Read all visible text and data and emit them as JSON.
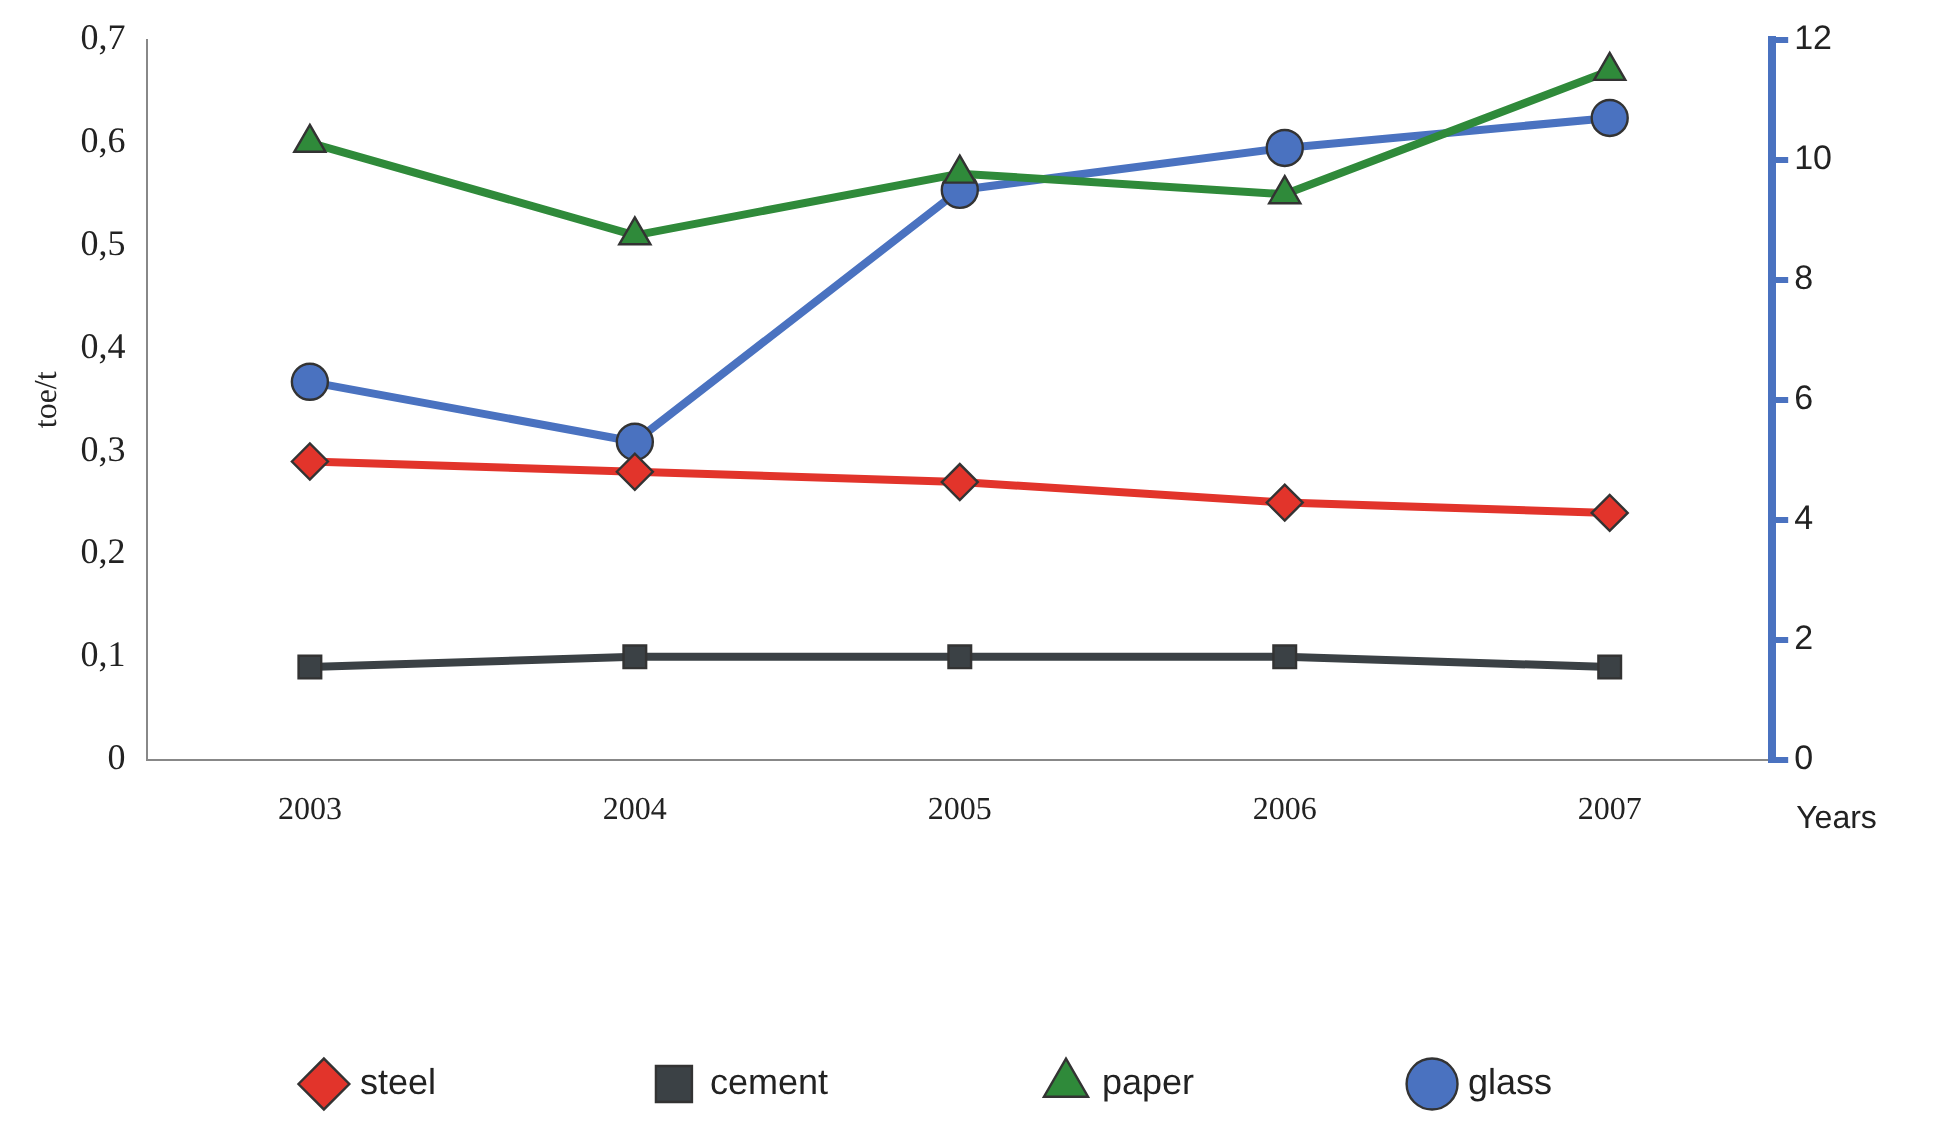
{
  "chart_data": {
    "type": "line",
    "ylabel": "toe/t",
    "xlabel": "Years",
    "categories": [
      "2003",
      "2004",
      "2005",
      "2006",
      "2007"
    ],
    "series": [
      {
        "name": "steel",
        "color": "#e2342b",
        "marker": "diamond",
        "values": [
          0.29,
          0.28,
          0.27,
          0.25,
          0.24
        ]
      },
      {
        "name": "cement",
        "color": "#3b4145",
        "marker": "square",
        "values": [
          0.09,
          0.1,
          0.1,
          0.1,
          0.09
        ]
      },
      {
        "name": "paper",
        "color": "#2f8a3a",
        "marker": "triangle",
        "values": [
          0.6,
          0.51,
          0.57,
          0.55,
          0.67
        ]
      },
      {
        "name": "glass",
        "color": "#4a72c0",
        "marker": "circle",
        "axis": "y2",
        "values": [
          6.3,
          5.3,
          9.5,
          10.2,
          10.7
        ]
      }
    ],
    "ylim": [
      0,
      0.7
    ],
    "yticks": [
      {
        "value": 0,
        "label": "0"
      },
      {
        "value": 0.1,
        "label": "0,1"
      },
      {
        "value": 0.2,
        "label": "0,2"
      },
      {
        "value": 0.3,
        "label": "0,3"
      },
      {
        "value": 0.4,
        "label": "0,4"
      },
      {
        "value": 0.5,
        "label": "0,5"
      },
      {
        "value": 0.6,
        "label": "0,6"
      },
      {
        "value": 0.7,
        "label": "0,7"
      }
    ],
    "y2lim": [
      0,
      12
    ],
    "y2ticks": [
      0,
      2,
      4,
      6,
      8,
      10,
      12
    ],
    "grid": false,
    "legend": "bottom"
  }
}
